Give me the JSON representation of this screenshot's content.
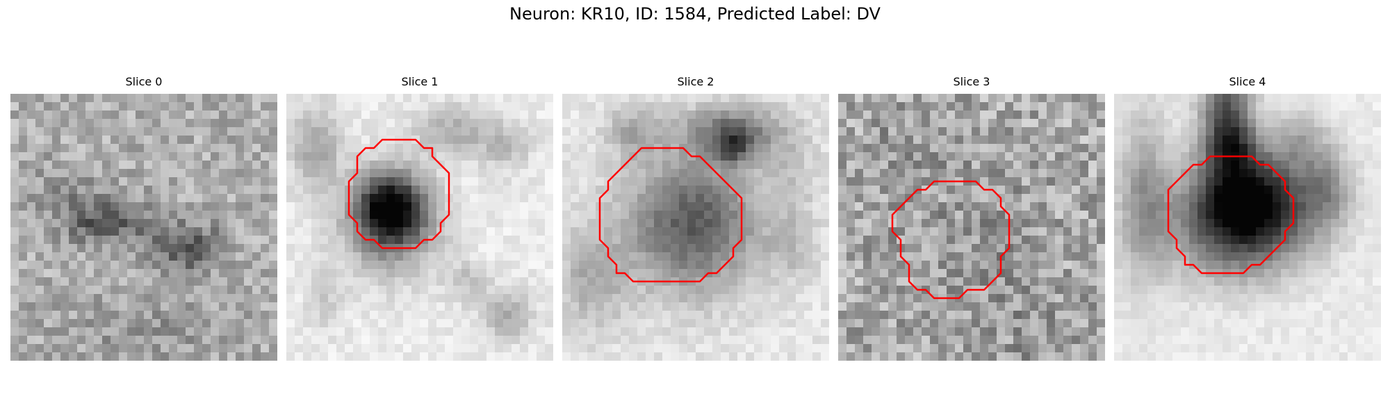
{
  "figure": {
    "title": "Neuron: KR10, ID: 1584, Predicted Label: DV"
  },
  "contour_color": "#ff0000",
  "panels": [
    {
      "title": "Slice 0",
      "has_contour": false
    },
    {
      "title": "Slice 1",
      "has_contour": true
    },
    {
      "title": "Slice 2",
      "has_contour": true
    },
    {
      "title": "Slice 3",
      "has_contour": true
    },
    {
      "title": "Slice 4",
      "has_contour": true
    }
  ]
}
